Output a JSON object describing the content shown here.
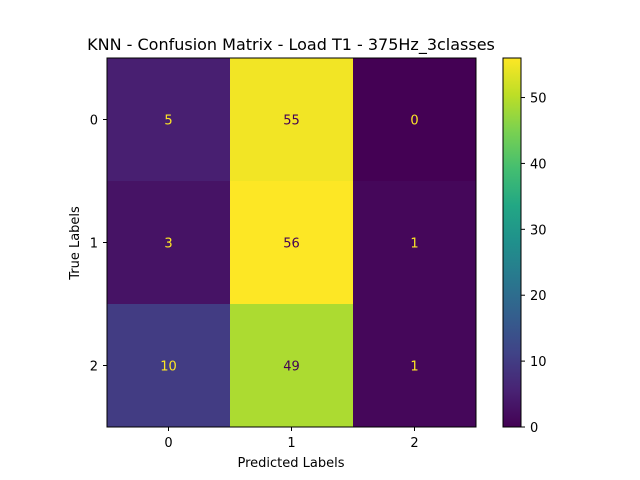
{
  "chart_data": {
    "type": "heatmap",
    "title": "KNN - Confusion Matrix - Load T1 - 375Hz_3classes",
    "xlabel": "Predicted Labels",
    "ylabel": "True Labels",
    "x_categories": [
      "0",
      "1",
      "2"
    ],
    "y_categories": [
      "0",
      "1",
      "2"
    ],
    "values": [
      [
        5,
        55,
        0
      ],
      [
        3,
        56,
        1
      ],
      [
        10,
        49,
        1
      ]
    ],
    "colormap": "viridis",
    "colorbar": {
      "min": 0,
      "max": 56,
      "ticks": [
        0,
        10,
        20,
        30,
        40,
        50
      ]
    },
    "text_colors": {
      "on_dark": "#fde725",
      "on_light": "#440154"
    },
    "grid": false
  }
}
